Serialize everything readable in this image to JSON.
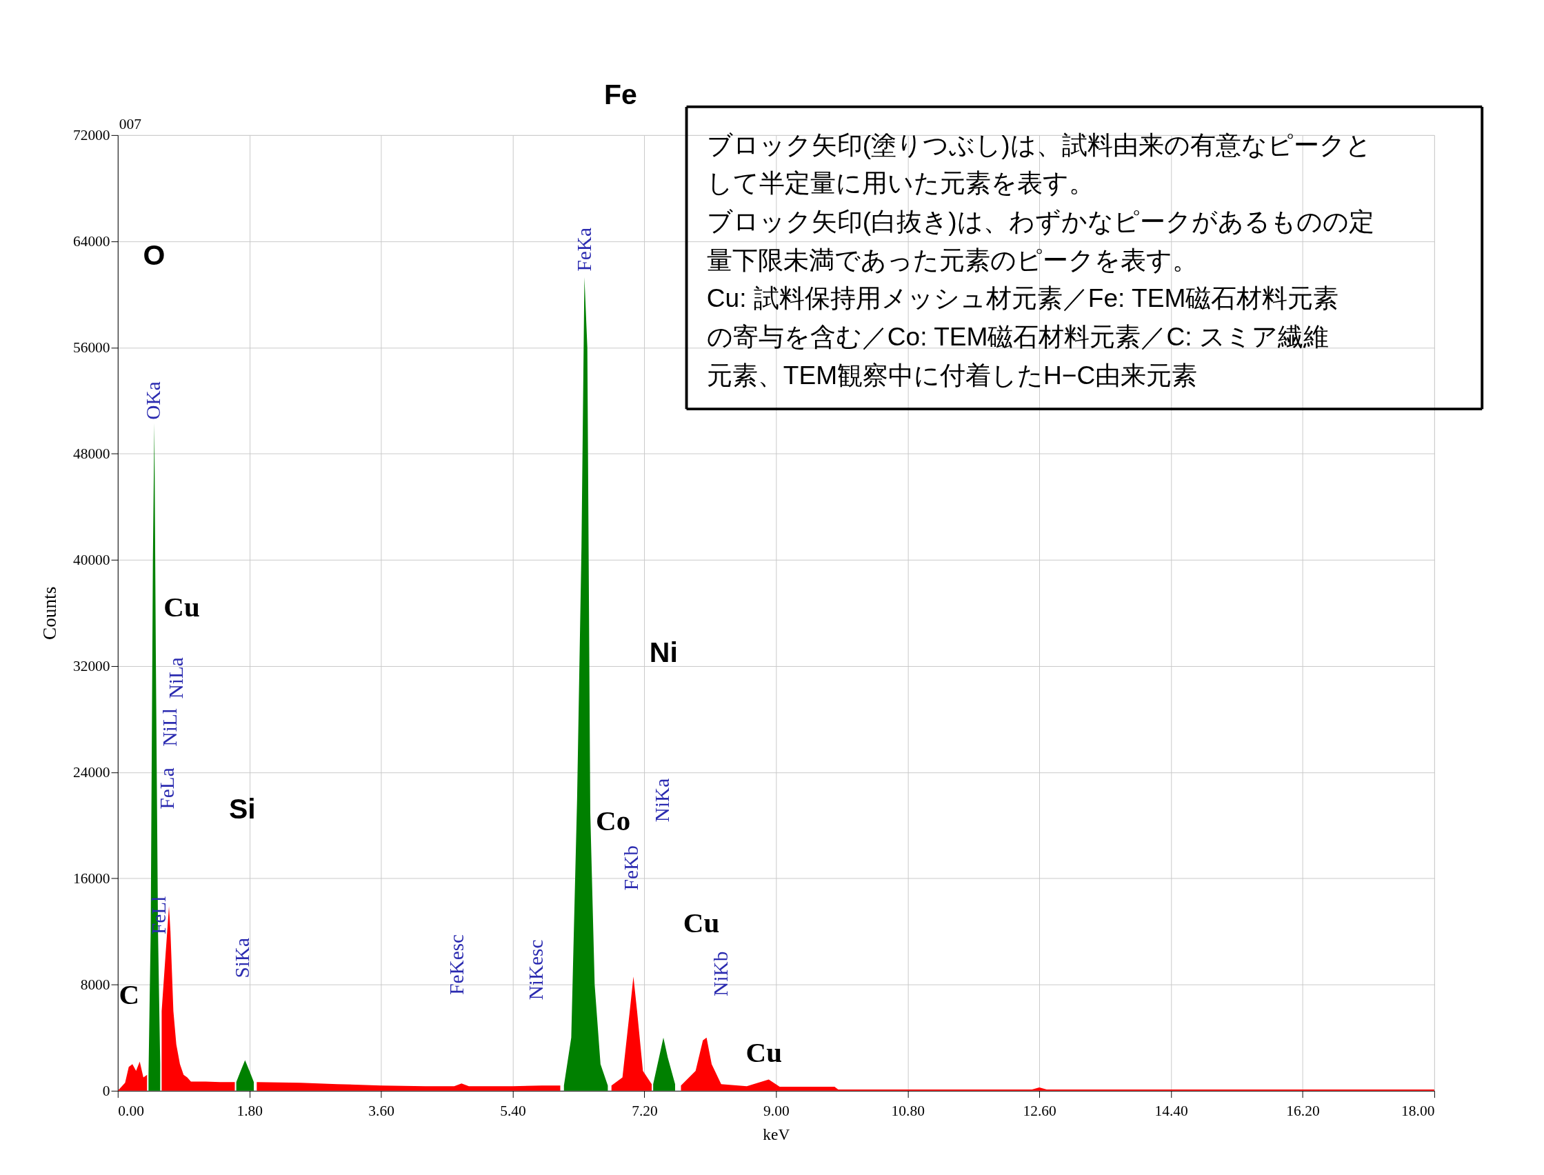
{
  "chart_data": {
    "type": "area",
    "xlabel": "keV",
    "ylabel": "Counts",
    "x": [
      0.0,
      0.1,
      0.15,
      0.2,
      0.25,
      0.3,
      0.35,
      0.4,
      0.42,
      0.45,
      0.48,
      0.5,
      0.52,
      0.55,
      0.58,
      0.6,
      0.65,
      0.7,
      0.72,
      0.76,
      0.8,
      0.85,
      0.9,
      0.95,
      1.0,
      1.2,
      1.4,
      1.6,
      1.62,
      1.68,
      1.74,
      1.8,
      1.86,
      1.9,
      2.5,
      3.0,
      3.6,
      4.2,
      4.6,
      4.7,
      4.8,
      5.4,
      5.8,
      6.05,
      6.1,
      6.2,
      6.28,
      6.34,
      6.38,
      6.42,
      6.46,
      6.52,
      6.6,
      6.7,
      6.75,
      6.9,
      7.0,
      7.05,
      7.1,
      7.18,
      7.3,
      7.32,
      7.4,
      7.46,
      7.52,
      7.62,
      7.7,
      7.9,
      8.0,
      8.05,
      8.12,
      8.25,
      8.6,
      8.9,
      9.05,
      9.8,
      9.85,
      12.5,
      12.6,
      12.7,
      18.0
    ],
    "series": [
      {
        "color": "#ff0000",
        "values": [
          0,
          600,
          1800,
          2000,
          1500,
          2200,
          1000,
          1200,
          null,
          null,
          null,
          null,
          null,
          null,
          null,
          6000,
          10000,
          13900,
          12000,
          6000,
          3500,
          2000,
          1200,
          1000,
          700,
          700,
          650,
          650,
          null,
          null,
          null,
          null,
          null,
          650,
          600,
          500,
          400,
          350,
          350,
          550,
          350,
          350,
          400,
          400,
          null,
          null,
          null,
          null,
          null,
          null,
          null,
          null,
          null,
          null,
          400,
          1000,
          6000,
          8600,
          6000,
          1500,
          500,
          null,
          null,
          null,
          null,
          null,
          400,
          1500,
          3800,
          4000,
          2000,
          500,
          350,
          850,
          300,
          300,
          100,
          100,
          250,
          100,
          100
        ]
      },
      {
        "color": "#008000",
        "values": [
          null,
          null,
          null,
          null,
          null,
          null,
          null,
          null,
          1200,
          12000,
          40000,
          50300,
          33000,
          12000,
          2000,
          null,
          null,
          null,
          null,
          null,
          null,
          null,
          null,
          null,
          null,
          null,
          null,
          null,
          650,
          1500,
          2300,
          1500,
          650,
          null,
          null,
          null,
          null,
          null,
          null,
          null,
          null,
          null,
          null,
          null,
          400,
          4000,
          22000,
          41000,
          61300,
          56000,
          21000,
          8000,
          2000,
          400,
          null,
          null,
          null,
          null,
          null,
          null,
          null,
          500,
          2500,
          4000,
          2500,
          500,
          null,
          null,
          null,
          null,
          null,
          null,
          null,
          null,
          null,
          null,
          null,
          null,
          null,
          null,
          null
        ]
      }
    ],
    "xlim": [
      0,
      18
    ],
    "xticks": [
      {
        "value": 0,
        "label": "0.00"
      },
      {
        "value": 1.8,
        "label": "1.80"
      },
      {
        "value": 3.6,
        "label": "3.60"
      },
      {
        "value": 5.4,
        "label": "5.40"
      },
      {
        "value": 7.2,
        "label": "7.20"
      },
      {
        "value": 9,
        "label": "9.00"
      },
      {
        "value": 10.8,
        "label": "10.80"
      },
      {
        "value": 12.6,
        "label": "12.60"
      },
      {
        "value": 14.4,
        "label": "14.40"
      },
      {
        "value": 16.2,
        "label": "16.20"
      },
      {
        "value": 18,
        "label": "18.00"
      }
    ],
    "ylim": [
      0,
      72000
    ],
    "yticks": [
      0,
      8000,
      16000,
      24000,
      32000,
      40000,
      48000,
      56000,
      64000,
      72000
    ],
    "grid": true,
    "annotations": [
      "OKa",
      "FeLl",
      "FeLa",
      "NiLl",
      "NiLa",
      "SiKa",
      "FeKesc",
      "NiKesc",
      "FeKa",
      "FeKb",
      "NiKa",
      "NiKb",
      "O",
      "Si",
      "Ni",
      "Fe",
      "C",
      "Cu",
      "Co",
      "Cu",
      "Cu",
      "007",
      "ブロック矢印(塗りつぶし)は、試料由来の有意なピークとして半定量に用いた元素を表す。",
      "ブロック矢印(白抜き)は、わずかなピークがあるものの定量下限未満であった元素のピークを表す。",
      "Cu: 試料保持用メッシュ材元素／Fe: TEM磁石材料元素の寄与を含む／Co: TEM磁石材料元素／C: スミア繊維元素、TEM観察中に付着したH−C由来元素"
    ]
  }
}
